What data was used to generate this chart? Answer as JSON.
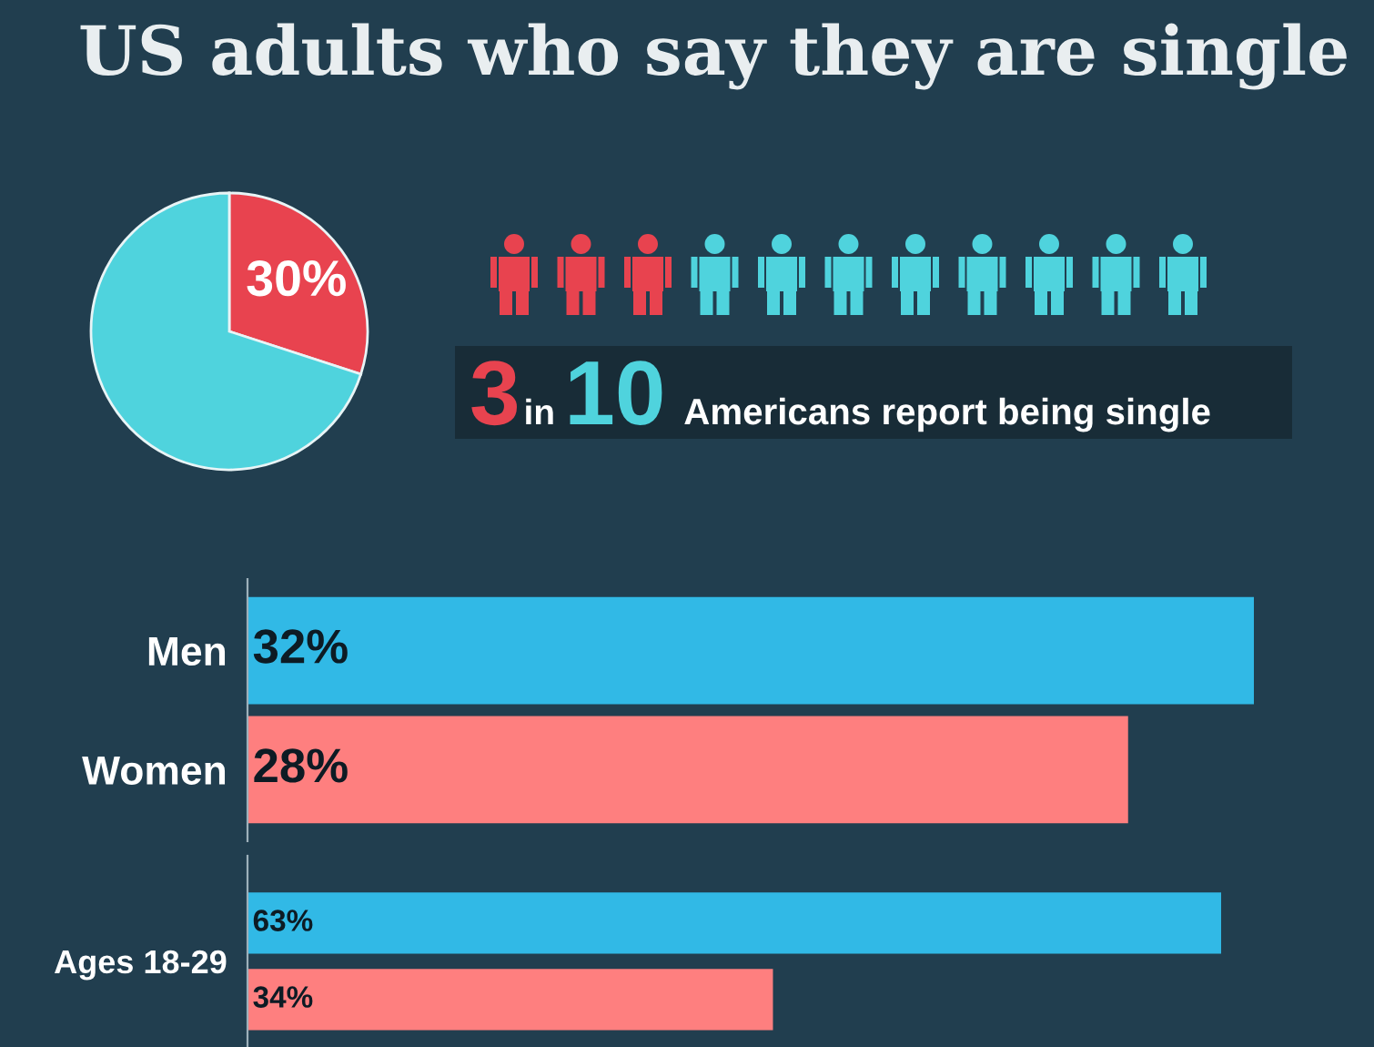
{
  "chart_data": [
    {
      "type": "pie",
      "title": "US adults who say they are single",
      "categories": [
        null,
        null
      ],
      "values": [
        30,
        70
      ],
      "colors": [
        "#e8434f",
        "#4fd3dd"
      ],
      "value_labels": [
        "30%",
        null
      ],
      "annotations": [
        "3 in 10 Americans report being single"
      ]
    },
    {
      "type": "bar",
      "orientation": "horizontal",
      "categories": [
        "Men",
        "Women"
      ],
      "values": [
        32,
        28
      ],
      "colors": [
        "#31b9e6",
        "#fe7f7f"
      ],
      "value_labels": [
        "32%",
        "28%"
      ],
      "tick_labels": "y"
    },
    {
      "type": "bar",
      "orientation": "horizontal",
      "categories": [
        "Ages 18-29"
      ],
      "series": [
        {
          "color": "#31b9e6",
          "values": [
            63
          ],
          "value_labels": [
            "63%"
          ]
        },
        {
          "color": "#fe7f7f",
          "values": [
            34
          ],
          "value_labels": [
            "34%"
          ]
        }
      ],
      "tick_labels": "y"
    }
  ]
}
